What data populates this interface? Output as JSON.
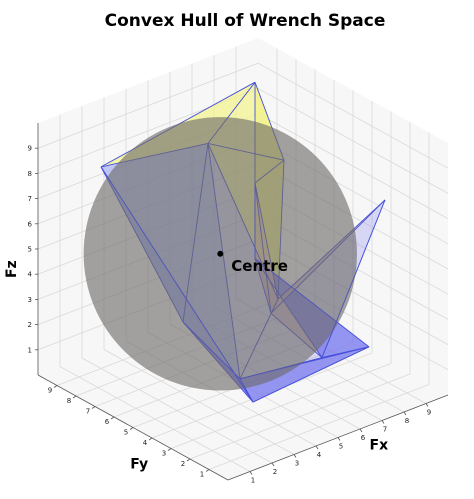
{
  "chart_data": {
    "type": "scatter",
    "projection": "3d",
    "title": "Convex Hull of Wrench Space",
    "xlabel": "Fx",
    "ylabel": "Fy",
    "zlabel": "Fz",
    "xlim": [
      0,
      10
    ],
    "ylim": [
      0,
      10
    ],
    "zlim": [
      0,
      10
    ],
    "x_ticks": [
      "1",
      "2",
      "3",
      "4",
      "5",
      "6",
      "7",
      "8",
      "9"
    ],
    "y_ticks": [
      "1",
      "2",
      "3",
      "4",
      "5",
      "6",
      "7",
      "8",
      "9"
    ],
    "z_ticks": [
      "1",
      "2",
      "3",
      "4",
      "5",
      "6",
      "7",
      "8",
      "9"
    ],
    "grid": true,
    "hull_vertices": [
      {
        "x": 8,
        "y": 1,
        "z": 8
      },
      {
        "x": 4,
        "y": 4,
        "z": 1
      },
      {
        "x": 9,
        "y": 9,
        "z": 9
      },
      {
        "x": 6,
        "y": 8,
        "z": 8
      },
      {
        "x": 2,
        "y": 9,
        "z": 8
      },
      {
        "x": 9,
        "y": 9,
        "z": 5
      },
      {
        "x": 9,
        "y": 9,
        "z": 2
      },
      {
        "x": 9,
        "y": 3,
        "z": 1
      },
      {
        "x": 2,
        "y": 1,
        "z": 2
      },
      {
        "x": 4,
        "y": 2,
        "z": 5
      },
      {
        "x": 6,
        "y": 4,
        "z": 9
      },
      {
        "x": 8,
        "y": 7,
        "z": 1
      },
      {
        "x": 4,
        "y": 7,
        "z": 2
      },
      {
        "x": 6,
        "y": 2,
        "z": 2
      }
    ],
    "inscribed_sphere": {
      "center": {
        "x": 4.4,
        "y": 5.5,
        "z": 5.2
      },
      "radius": 3.95
    },
    "centre_label": "Centre",
    "colors": {
      "face_top": "#f2f28a",
      "face_left": "#8fa0f4",
      "face_bottom": "#7878f0",
      "face_right": "#e7c7b6",
      "edge": "#4650d8",
      "sphere": "#6e6b67"
    }
  }
}
